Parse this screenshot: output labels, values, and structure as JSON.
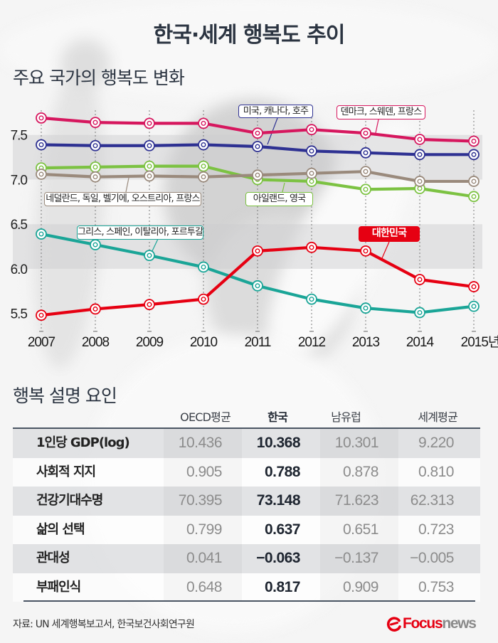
{
  "header": {
    "title": "한국·세계 행복도 추이"
  },
  "chart_data": {
    "type": "line",
    "title": "주요 국가의 행복도 변화",
    "xlabel": "",
    "ylabel": "",
    "x": [
      2007,
      2008,
      2009,
      2010,
      2011,
      2012,
      2013,
      2014,
      2015
    ],
    "xtick_labels": [
      "2007",
      "2008",
      "2009",
      "2010",
      "2011",
      "2012",
      "2013",
      "2014",
      "2015년"
    ],
    "yticks": [
      7.5,
      7.0,
      6.5,
      6.0,
      5.5
    ],
    "ytick_labels": [
      "7.5",
      "7.0",
      "6.5",
      "6.0",
      "5.5"
    ],
    "ylim": [
      5.3,
      7.8
    ],
    "shaded_bands": [
      [
        7.0,
        7.5
      ],
      [
        6.0,
        6.5
      ]
    ],
    "grid": "vertical dotted lines at each year",
    "legend": "inline callout labels",
    "series": [
      {
        "name": "그리스, 스페인, 이탈리아, 포르투갈",
        "color": "#1aa597",
        "values": [
          6.39,
          6.27,
          6.15,
          6.02,
          5.81,
          5.66,
          5.56,
          5.51,
          5.58
        ]
      },
      {
        "name": "아일랜드, 영국",
        "color": "#7cc242",
        "values": [
          7.13,
          7.14,
          7.15,
          7.15,
          7.0,
          6.98,
          6.89,
          6.9,
          6.81
        ]
      },
      {
        "name": "네덜란드, 독일, 벨기에, 오스트리아, 프랑스",
        "color": "#9a8a7c",
        "values": [
          7.06,
          7.03,
          7.04,
          7.03,
          7.05,
          7.07,
          7.09,
          6.98,
          6.98
        ]
      },
      {
        "name": "미국, 캐나다, 호주",
        "color": "#2e3192",
        "values": [
          7.39,
          7.38,
          7.38,
          7.39,
          7.37,
          7.32,
          7.3,
          7.28,
          7.28
        ]
      },
      {
        "name": "덴마크, 스웨덴, 프랑스",
        "color": "#d6175e",
        "values": [
          7.69,
          7.64,
          7.63,
          7.63,
          7.52,
          7.56,
          7.52,
          7.45,
          7.43
        ]
      },
      {
        "name": "대한민국",
        "color": "#e60012",
        "values": [
          5.48,
          5.55,
          5.6,
          5.66,
          6.2,
          6.24,
          6.2,
          5.88,
          5.8
        ]
      }
    ]
  },
  "factors": {
    "title": "행복 설명 요인",
    "columns": [
      "OECD평균",
      "한국",
      "남유럽",
      "세계평균"
    ],
    "rows": [
      {
        "label": "1인당 GDP(log)",
        "values": [
          "10.436",
          "10.368",
          "10.301",
          "9.220"
        ]
      },
      {
        "label": "사회적 지지",
        "values": [
          "0.905",
          "0.788",
          "0.878",
          "0.810"
        ]
      },
      {
        "label": "건강기대수명",
        "values": [
          "70.395",
          "73.148",
          "71.623",
          "62.313"
        ]
      },
      {
        "label": "삶의 선택",
        "values": [
          "0.799",
          "0.637",
          "0.651",
          "0.723"
        ]
      },
      {
        "label": "관대성",
        "values": [
          "0.041",
          "−0.063",
          "−0.137",
          "−0.005"
        ]
      },
      {
        "label": "부패인식",
        "values": [
          "0.648",
          "0.817",
          "0.909",
          "0.753"
        ]
      }
    ]
  },
  "footer": {
    "source": "자료: UN 세계행복보고서, 한국보건사회연구원",
    "logo": {
      "primary": "Focus",
      "secondary": "news",
      "icon": "focus-e-swoosh-icon",
      "primary_color": "#e60012",
      "secondary_color": "#8a8a8a"
    }
  }
}
